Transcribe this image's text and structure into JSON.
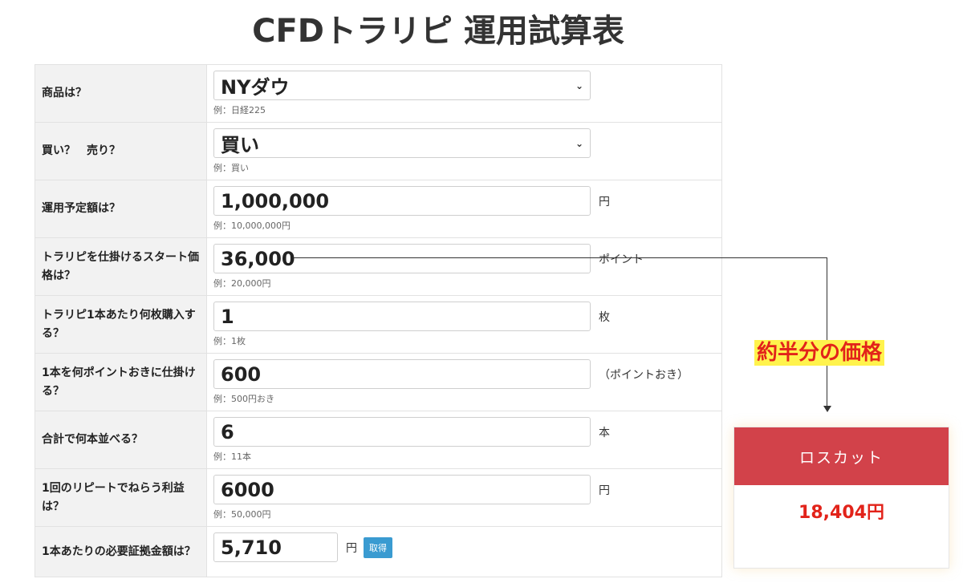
{
  "title": "CFDトラリピ 運用試算表",
  "rows": [
    {
      "label": "商品は？",
      "value": "NYダウ",
      "example": "例：日経225"
    },
    {
      "label": "買い？　売り？",
      "value": "買い",
      "example": "例：買い"
    },
    {
      "label": "運用予定額は？",
      "value": "1,000,000",
      "unit": "円",
      "example": "例：10,000,000円"
    },
    {
      "label": "トラリピを仕掛けるスタート価格は？",
      "value": "36,000",
      "unit": "ポイント",
      "example": "例：20,000円"
    },
    {
      "label": "トラリピ1本あたり何枚購入する？",
      "value": "1",
      "unit": "枚",
      "example": "例：1枚"
    },
    {
      "label": "1本を何ポイントおきに仕掛ける？",
      "value": "600",
      "unit": "（ポイントおき）",
      "example": "例：500円おき"
    },
    {
      "label": "合計で何本並べる？",
      "value": "6",
      "unit": "本",
      "example": "例：11本"
    },
    {
      "label": "1回のリピートでねらう利益は？",
      "value": "6000",
      "unit": "円",
      "example": "例：50,000円"
    },
    {
      "label": "1本あたりの必要証拠金額は？",
      "value": "5,710",
      "unit": "円",
      "button": "取得"
    }
  ],
  "annotation": "約半分の価格",
  "result": {
    "header": "ロスカット",
    "value": "18,404円"
  },
  "colors": {
    "accent_red": "#d2424a",
    "highlight": "#fff34d",
    "button_blue": "#3a9bd1"
  }
}
